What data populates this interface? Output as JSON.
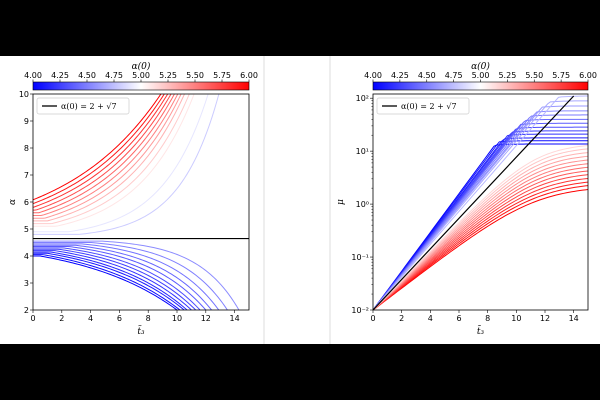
{
  "chart_data": [
    {
      "type": "line",
      "panel": "left",
      "title": "",
      "xlabel": "t̃₃",
      "ylabel": "α",
      "xlim": [
        0,
        15
      ],
      "ylim": [
        2,
        10
      ],
      "yscale": "linear",
      "xticks": [
        "0",
        "2",
        "4",
        "6",
        "8",
        "10",
        "12",
        "14"
      ],
      "yticks": [
        "2",
        "3",
        "4",
        "5",
        "6",
        "7",
        "8",
        "9",
        "10"
      ],
      "legend": {
        "position": "top-left",
        "label": "α(0) = 2 + √7",
        "color": "#000000"
      },
      "colorbar": {
        "label": "α(0)",
        "range": [
          4.0,
          6.0
        ],
        "ticks": [
          "4.00",
          "4.25",
          "4.50",
          "4.75",
          "5.00",
          "5.25",
          "5.50",
          "5.75",
          "6.00"
        ],
        "colors": [
          "#0000ff",
          "#ffffff",
          "#ff0000"
        ]
      },
      "reference_line": {
        "y": 4.6458,
        "label": "α(0) = 2 + √7"
      },
      "series_upper": {
        "initial_values": [
          6.0,
          5.9,
          5.8,
          5.7,
          5.6,
          5.5,
          5.4,
          5.3,
          5.2,
          5.1,
          5.0,
          4.9,
          4.8
        ],
        "blowup_t": [
          9.6,
          9.8,
          10.0,
          10.2,
          10.4,
          10.6,
          10.8,
          11.0,
          11.3,
          11.6,
          12.0,
          12.5,
          13.2
        ]
      },
      "series_lower": {
        "initial_values": [
          4.0,
          4.05,
          4.1,
          4.15,
          4.2,
          4.25,
          4.3,
          4.35,
          4.4,
          4.45,
          4.5,
          4.55
        ],
        "end_t": [
          10.0,
          10.2,
          10.5,
          10.7,
          11.0,
          11.3,
          11.6,
          12.0,
          12.4,
          12.9,
          13.5,
          14.3
        ]
      }
    },
    {
      "type": "line",
      "panel": "right",
      "title": "",
      "xlabel": "t̃₃",
      "ylabel": "μ",
      "xlim": [
        0,
        15
      ],
      "ylim": [
        0.01,
        120
      ],
      "yscale": "log",
      "xticks": [
        "0",
        "2",
        "4",
        "6",
        "8",
        "10",
        "12",
        "14"
      ],
      "yticks": [
        "10⁻²",
        "10⁻¹",
        "10⁰",
        "10¹",
        "10²"
      ],
      "legend": {
        "position": "top-left",
        "label": "α(0) = 2 + √7",
        "color": "#000000"
      },
      "colorbar": {
        "label": "α(0)",
        "range": [
          4.0,
          6.0
        ],
        "ticks": [
          "4.00",
          "4.25",
          "4.50",
          "4.75",
          "5.00",
          "5.25",
          "5.50",
          "5.75",
          "6.00"
        ],
        "colors": [
          "#0000ff",
          "#ffffff",
          "#ff0000"
        ]
      },
      "reference_line": {
        "start": [
          0,
          0.01
        ],
        "end": [
          14,
          110
        ]
      },
      "series_blue": {
        "plateau_values": [
          13,
          15,
          17,
          20,
          23,
          27,
          32,
          38,
          46,
          55,
          68,
          85,
          105
        ],
        "knee_t": [
          8.5,
          8.8,
          9.1,
          9.4,
          9.7,
          10.0,
          10.3,
          10.6,
          11.0,
          11.4,
          11.8,
          12.3,
          13.0
        ]
      },
      "series_red": {
        "end_values": [
          2.2,
          2.6,
          3.0,
          3.5,
          4.1,
          4.8,
          5.6,
          6.5,
          7.6,
          8.9,
          10.4,
          12.2,
          14.0
        ],
        "slope_factor": [
          0.72,
          0.74,
          0.76,
          0.78,
          0.8,
          0.82,
          0.84,
          0.86,
          0.88,
          0.9,
          0.92,
          0.94,
          0.96
        ]
      }
    }
  ]
}
